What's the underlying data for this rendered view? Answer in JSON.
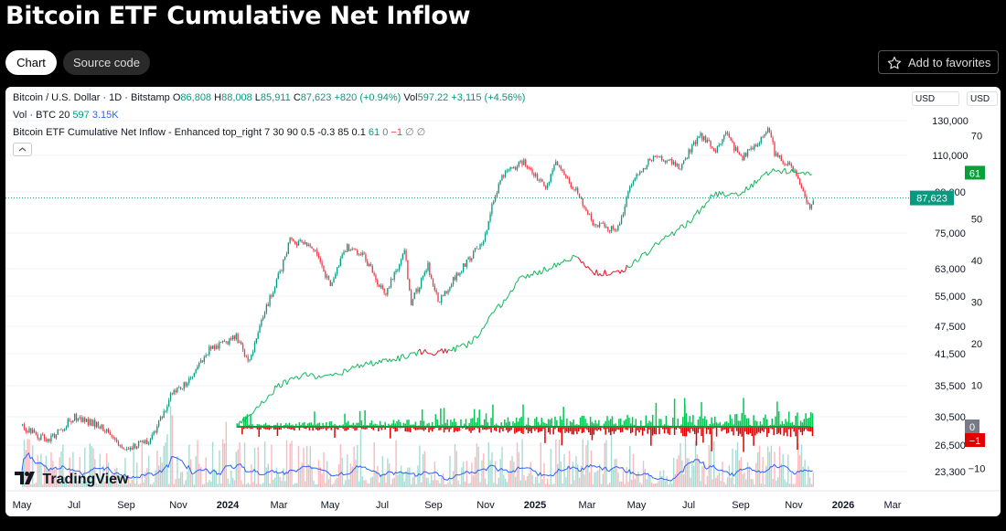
{
  "page": {
    "title": "Bitcoin ETF Cumulative Net Inflow"
  },
  "tabs": [
    {
      "label": "Chart"
    },
    {
      "label": "Source code"
    }
  ],
  "favorites": {
    "label": "Add to favorites",
    "icon": "star-icon"
  },
  "legend": {
    "symbol": "Bitcoin / U.S. Dollar · 1D · Bitstamp",
    "o_label": "O",
    "o": "86,808",
    "h_label": "H",
    "h": "88,008",
    "l_label": "L",
    "l": "85,911",
    "c_label": "C",
    "c": "87,623",
    "change": "+820 (+0.94%)",
    "vol_label": "Vol",
    "vol": "597.22",
    "vol_change": "+3,115 (+4.56%)",
    "vol_line_label": "Vol · BTC 20",
    "vol_line_v1": "597",
    "vol_line_v2": "3.15K",
    "indicator": "Bitcoin ETF Cumulative Net Inflow - Enhanced top_right 7 30 90 0.5 -0.3 85 0.1",
    "ind_v1": "61",
    "ind_v2": "0",
    "ind_v3": "−1",
    "ind_v4": "∅",
    "ind_v5": "∅"
  },
  "currency": {
    "left": "USD",
    "right": "USD"
  },
  "branding": "TradingView",
  "colors": {
    "up": "#089981",
    "down": "#f23645",
    "inflow_up": "#00c853",
    "inflow_down": "#e00000",
    "volume_ma": "#2962ff"
  },
  "chart_data": {
    "type": "line",
    "price_axis": {
      "scale": "log",
      "labels": [
        "130,000",
        "110,000",
        "90,000",
        "75,000",
        "63,000",
        "55,000",
        "47,500",
        "41,500",
        "35,500",
        "30,500",
        "26,500",
        "23,300"
      ],
      "values": [
        130000,
        110000,
        90000,
        75000,
        63000,
        55000,
        47500,
        41500,
        35500,
        30500,
        26500,
        23300
      ]
    },
    "indicator_axis": {
      "labels": [
        "70",
        "60",
        "50",
        "40",
        "30",
        "20",
        "10",
        "0",
        "−10"
      ],
      "values": [
        70,
        60,
        50,
        40,
        30,
        20,
        10,
        0,
        -10
      ]
    },
    "x_axis": {
      "labels": [
        "May",
        "Jul",
        "Sep",
        "Nov",
        "2024",
        "Mar",
        "May",
        "Jul",
        "Sep",
        "Nov",
        "2025",
        "Mar",
        "May",
        "Jul",
        "Sep",
        "Nov",
        "2026",
        "Mar"
      ]
    },
    "price_label": "87,623",
    "indicator_badges": [
      "61",
      "0",
      "−1"
    ],
    "series": [
      {
        "name": "Bitcoin / U.S. Dollar",
        "type": "candlestick",
        "points": [
          [
            "2023-05-01",
            29000
          ],
          [
            "2023-06-01",
            27000
          ],
          [
            "2023-07-01",
            30500
          ],
          [
            "2023-08-01",
            29200
          ],
          [
            "2023-09-01",
            26000
          ],
          [
            "2023-10-01",
            27200
          ],
          [
            "2023-10-25",
            34000
          ],
          [
            "2023-11-15",
            36500
          ],
          [
            "2023-12-10",
            42500
          ],
          [
            "2024-01-10",
            45000
          ],
          [
            "2024-01-25",
            40000
          ],
          [
            "2024-02-15",
            52000
          ],
          [
            "2024-03-05",
            64000
          ],
          [
            "2024-03-14",
            72500
          ],
          [
            "2024-04-10",
            70000
          ],
          [
            "2024-05-01",
            58000
          ],
          [
            "2024-05-20",
            70000
          ],
          [
            "2024-06-10",
            67000
          ],
          [
            "2024-07-05",
            55000
          ],
          [
            "2024-07-28",
            69000
          ],
          [
            "2024-08-05",
            53000
          ],
          [
            "2024-08-25",
            64000
          ],
          [
            "2024-09-06",
            53500
          ],
          [
            "2024-10-01",
            62000
          ],
          [
            "2024-10-29",
            72000
          ],
          [
            "2024-11-13",
            89000
          ],
          [
            "2024-11-22",
            99000
          ],
          [
            "2024-12-17",
            106000
          ],
          [
            "2025-01-13",
            92000
          ],
          [
            "2025-01-22",
            106000
          ],
          [
            "2025-02-01",
            100000
          ],
          [
            "2025-02-25",
            86000
          ],
          [
            "2025-03-10",
            78000
          ],
          [
            "2025-04-07",
            76000
          ],
          [
            "2025-04-25",
            95000
          ],
          [
            "2025-05-22",
            111000
          ],
          [
            "2025-06-20",
            103000
          ],
          [
            "2025-07-14",
            122000
          ],
          [
            "2025-08-02",
            113000
          ],
          [
            "2025-08-14",
            123000
          ],
          [
            "2025-09-01",
            108000
          ],
          [
            "2025-10-06",
            125000
          ],
          [
            "2025-10-11",
            111000
          ],
          [
            "2025-11-04",
            101000
          ],
          [
            "2025-11-21",
            84000
          ],
          [
            "2025-11-26",
            87623
          ]
        ]
      },
      {
        "name": "Bitcoin ETF Cumulative Net Inflow",
        "type": "line",
        "points": [
          [
            "2024-01-11",
            0
          ],
          [
            "2024-02-01",
            4
          ],
          [
            "2024-03-01",
            10
          ],
          [
            "2024-04-01",
            12.5
          ],
          [
            "2024-05-01",
            12
          ],
          [
            "2024-06-10",
            15
          ],
          [
            "2024-07-15",
            16
          ],
          [
            "2024-08-15",
            18
          ],
          [
            "2024-09-15",
            18
          ],
          [
            "2024-10-15",
            20
          ],
          [
            "2024-11-15",
            28
          ],
          [
            "2024-12-15",
            36
          ],
          [
            "2025-01-15",
            38
          ],
          [
            "2025-02-15",
            41
          ],
          [
            "2025-03-10",
            37
          ],
          [
            "2025-04-10",
            37
          ],
          [
            "2025-05-01",
            40
          ],
          [
            "2025-06-01",
            45
          ],
          [
            "2025-07-01",
            49
          ],
          [
            "2025-08-01",
            56
          ],
          [
            "2025-09-01",
            56
          ],
          [
            "2025-10-10",
            62
          ],
          [
            "2025-11-05",
            61
          ],
          [
            "2025-11-26",
            61
          ]
        ]
      }
    ]
  }
}
